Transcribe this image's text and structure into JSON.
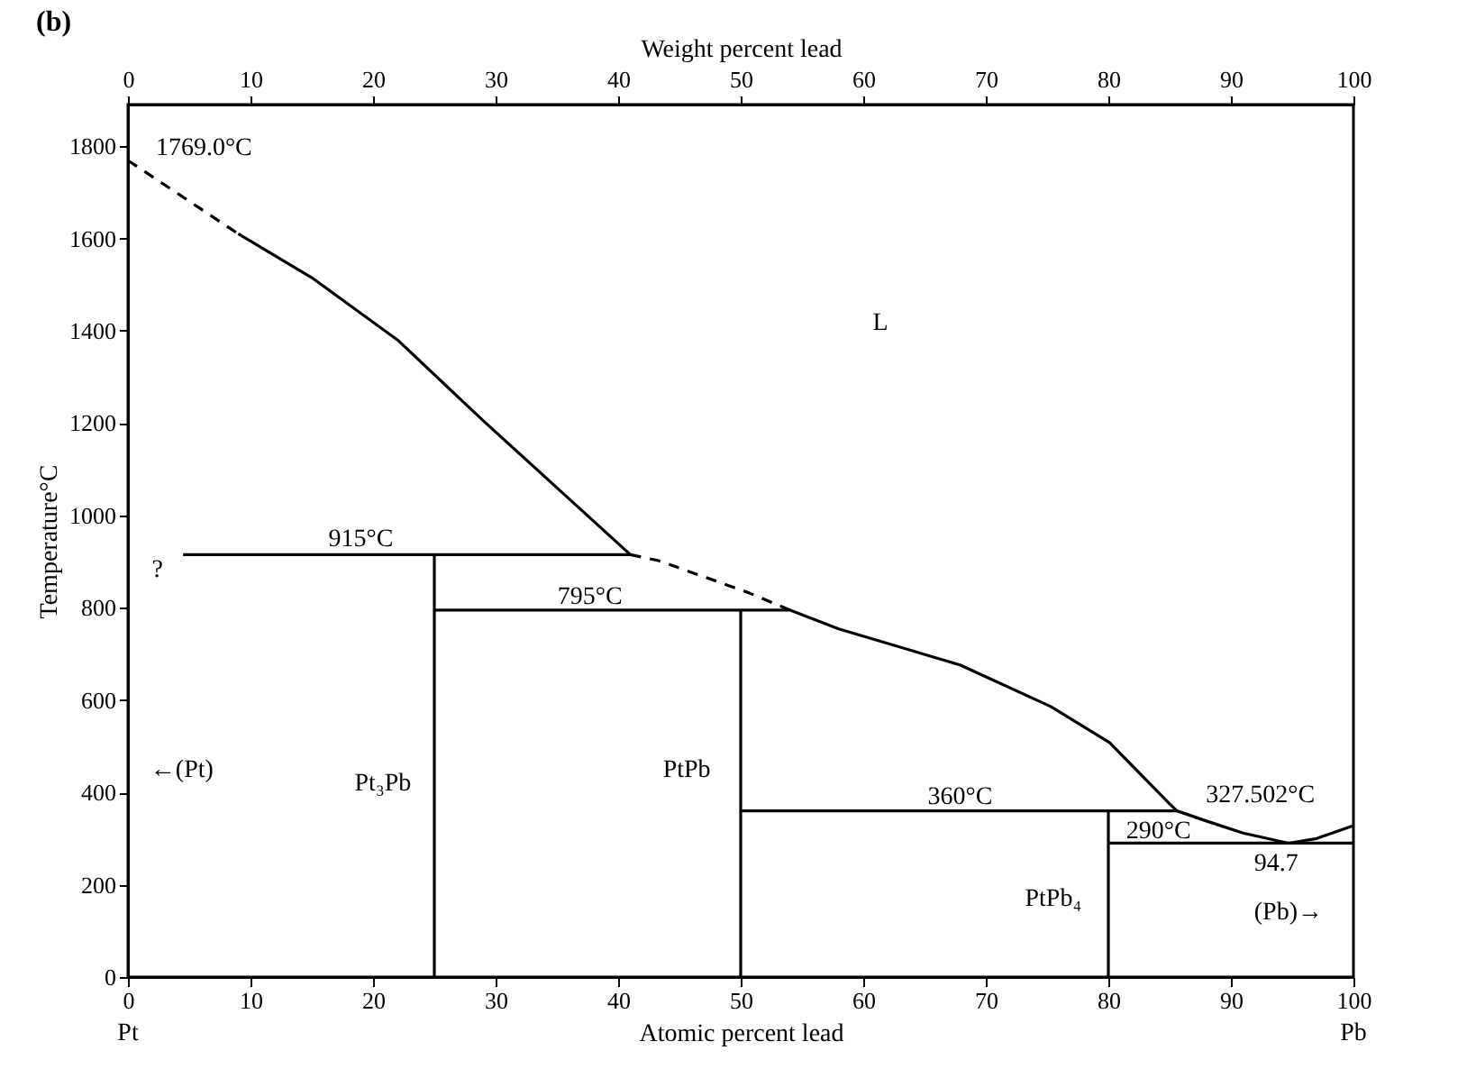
{
  "chart_data": {
    "type": "line",
    "title": "(b)",
    "xlabel": "Atomic percent lead",
    "x2label": "Weight percent lead",
    "ylabel": "Temperature°C",
    "xlim": [
      0,
      100
    ],
    "xticks": [
      0,
      10,
      20,
      30,
      40,
      50,
      60,
      70,
      80,
      90,
      100
    ],
    "x2lim": [
      0,
      100
    ],
    "x2ticks": [
      0,
      10,
      20,
      30,
      40,
      50,
      60,
      70,
      80,
      90,
      100
    ],
    "ylim": [
      0,
      1890
    ],
    "yticks": [
      0,
      200,
      400,
      600,
      800,
      1000,
      1200,
      1400,
      1600,
      1800
    ],
    "grid": false,
    "marker": "none",
    "series": [
      {
        "color": "#000000",
        "line_style": "dashed",
        "x": [
          0,
          9
        ],
        "values": [
          1769,
          1610
        ]
      },
      {
        "color": "#000000",
        "line_style": "solid",
        "x": [
          4.5,
          41,
          35,
          29,
          22,
          15,
          9
        ],
        "values": [
          915,
          915,
          1060,
          1205,
          1380,
          1515,
          1610
        ]
      },
      {
        "color": "#000000",
        "line_style": "dashed",
        "x": [
          41,
          43.3,
          50.7,
          54
        ],
        "values": [
          915,
          902,
          832,
          795
        ]
      },
      {
        "color": "#000000",
        "line_style": "solid",
        "x": [
          25,
          54,
          58,
          67.9,
          75.3,
          80.1,
          85,
          85.6,
          88,
          91,
          94.7,
          97,
          100
        ],
        "values": [
          795,
          795,
          754,
          676,
          586,
          508,
          375,
          360,
          338,
          312,
          290,
          300,
          328
        ]
      },
      {
        "color": "#000000",
        "line_style": "solid",
        "x": [
          25,
          25
        ],
        "values": [
          0,
          915
        ]
      },
      {
        "color": "#000000",
        "line_style": "solid",
        "x": [
          50,
          50
        ],
        "values": [
          0,
          795
        ]
      },
      {
        "color": "#000000",
        "line_style": "solid",
        "x": [
          50,
          85.6
        ],
        "values": [
          360,
          360
        ]
      },
      {
        "color": "#000000",
        "line_style": "solid",
        "x": [
          80,
          80
        ],
        "values": [
          0,
          360
        ]
      },
      {
        "color": "#000000",
        "line_style": "solid",
        "x": [
          80,
          100
        ],
        "values": [
          290,
          290
        ]
      }
    ],
    "annotations": [
      "1769.0°C",
      "915°C",
      "795°C",
      "360°C",
      "327.502°C",
      "290°C",
      "94.7",
      "L",
      "?",
      "←(Pt)",
      "(Pb)→",
      "Pt₃Pb",
      "PtPb",
      "PtPb₄",
      "Pt",
      "Pb"
    ]
  }
}
